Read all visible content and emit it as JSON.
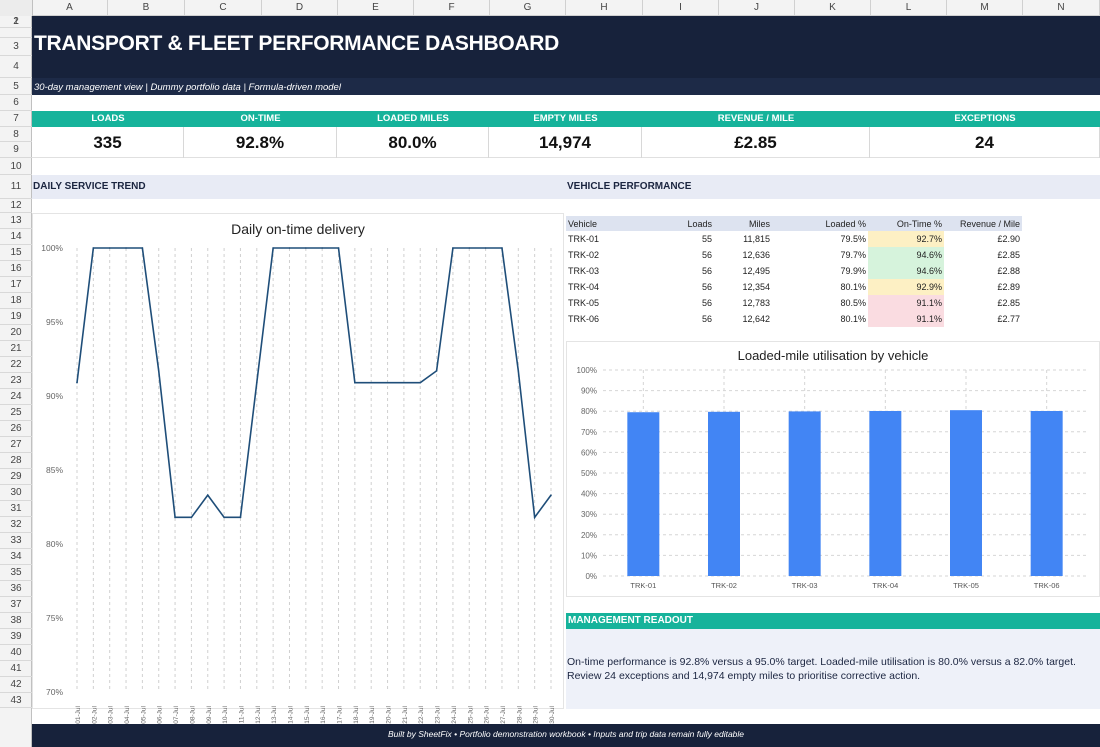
{
  "sheet": {
    "columns": [
      "A",
      "B",
      "C",
      "D",
      "E",
      "F",
      "G",
      "H",
      "I",
      "J",
      "K",
      "L",
      "M",
      "N"
    ],
    "rows": [
      "1",
      "2",
      "3",
      "4",
      "5",
      "6",
      "7",
      "8",
      "9",
      "10",
      "11",
      "12",
      "13",
      "14",
      "15",
      "16",
      "17",
      "18",
      "19",
      "20",
      "21",
      "22",
      "23",
      "24",
      "25",
      "26",
      "27",
      "28",
      "29",
      "30",
      "31",
      "32",
      "33",
      "34",
      "35",
      "36",
      "37",
      "38",
      "39",
      "40",
      "41",
      "42",
      "43"
    ]
  },
  "header": {
    "title": "TRANSPORT & FLEET PERFORMANCE DASHBOARD",
    "subtitle": "30-day management view  |  Dummy portfolio data  |  Formula-driven model"
  },
  "kpis": [
    {
      "label": "LOADS",
      "value": "335"
    },
    {
      "label": "ON-TIME",
      "value": "92.8%"
    },
    {
      "label": "LOADED MILES",
      "value": "80.0%"
    },
    {
      "label": "EMPTY MILES",
      "value": "14,974"
    },
    {
      "label": "REVENUE / MILE",
      "value": "£2.85"
    },
    {
      "label": "EXCEPTIONS",
      "value": "24"
    }
  ],
  "sections": {
    "trend": "DAILY SERVICE TREND",
    "vehicle": "VEHICLE PERFORMANCE",
    "readout": "MANAGEMENT READOUT"
  },
  "vehicle_table": {
    "headers": [
      "Vehicle",
      "Loads",
      "Miles",
      "Loaded %",
      "On-Time %",
      "Revenue / Mile"
    ],
    "rows": [
      {
        "vehicle": "TRK-01",
        "loads": "55",
        "miles": "11,815",
        "loaded": "79.5%",
        "ontime": "92.7%",
        "rev": "£2.90",
        "ontime_color": "#fdf0c4"
      },
      {
        "vehicle": "TRK-02",
        "loads": "56",
        "miles": "12,636",
        "loaded": "79.7%",
        "ontime": "94.6%",
        "rev": "£2.85",
        "ontime_color": "#d6f3dc"
      },
      {
        "vehicle": "TRK-03",
        "loads": "56",
        "miles": "12,495",
        "loaded": "79.9%",
        "ontime": "94.6%",
        "rev": "£2.88",
        "ontime_color": "#d6f3dc"
      },
      {
        "vehicle": "TRK-04",
        "loads": "56",
        "miles": "12,354",
        "loaded": "80.1%",
        "ontime": "92.9%",
        "rev": "£2.89",
        "ontime_color": "#fdf0c4"
      },
      {
        "vehicle": "TRK-05",
        "loads": "56",
        "miles": "12,783",
        "loaded": "80.5%",
        "ontime": "91.1%",
        "rev": "£2.85",
        "ontime_color": "#fadce1"
      },
      {
        "vehicle": "TRK-06",
        "loads": "56",
        "miles": "12,642",
        "loaded": "80.1%",
        "ontime": "91.1%",
        "rev": "£2.77",
        "ontime_color": "#fadce1"
      }
    ]
  },
  "readout": {
    "text": "On-time performance is 92.8% versus a 95.0% target. Loaded-mile utilisation is 80.0% versus a 82.0% target. Review 24 exceptions and 14,974 empty miles to prioritise corrective action."
  },
  "footer": {
    "text": "Built by SheetFix  •  Portfolio demonstration workbook  •  Inputs and trip data remain fully editable"
  },
  "colors": {
    "navy": "#17223b",
    "teal": "#16b39b",
    "line": "#1f4e79",
    "bar": "#4285f4"
  },
  "chart_data": [
    {
      "type": "line",
      "title": "Daily on-time delivery",
      "x": [
        "01-Jul",
        "02-Jul",
        "03-Jul",
        "04-Jul",
        "05-Jul",
        "06-Jul",
        "07-Jul",
        "08-Jul",
        "09-Jul",
        "10-Jul",
        "11-Jul",
        "12-Jul",
        "13-Jul",
        "14-Jul",
        "15-Jul",
        "16-Jul",
        "17-Jul",
        "18-Jul",
        "19-Jul",
        "20-Jul",
        "21-Jul",
        "22-Jul",
        "23-Jul",
        "24-Jul",
        "25-Jul",
        "26-Jul",
        "27-Jul",
        "28-Jul",
        "29-Jul",
        "30-Jul"
      ],
      "series": [
        {
          "values": [
            90.9,
            100,
            100,
            100,
            100,
            91.7,
            81.8,
            81.8,
            83.3,
            81.8,
            81.8,
            90.9,
            100,
            100,
            100,
            100,
            100,
            90.9,
            90.9,
            90.9,
            90.9,
            90.9,
            91.7,
            100,
            100,
            100,
            100,
            91.7,
            81.8,
            83.3
          ]
        }
      ],
      "ylim": [
        70,
        100
      ],
      "yticks": [
        "70%",
        "75%",
        "80%",
        "85%",
        "90%",
        "95%",
        "100%"
      ],
      "grid": true
    },
    {
      "type": "bar",
      "title": "Loaded-mile utilisation by vehicle",
      "categories": [
        "TRK-01",
        "TRK-02",
        "TRK-03",
        "TRK-04",
        "TRK-05",
        "TRK-06"
      ],
      "values": [
        79.5,
        79.7,
        79.9,
        80.1,
        80.5,
        80.1
      ],
      "ylim": [
        0,
        100
      ],
      "yticks": [
        "0%",
        "10%",
        "20%",
        "30%",
        "40%",
        "50%",
        "60%",
        "70%",
        "80%",
        "90%",
        "100%"
      ],
      "grid": true
    }
  ]
}
